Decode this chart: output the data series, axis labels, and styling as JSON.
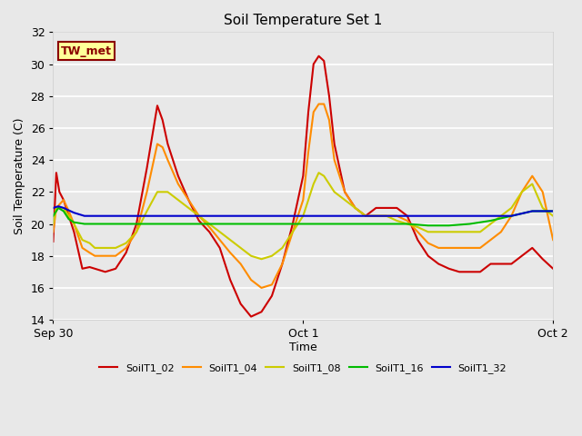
{
  "title": "Soil Temperature Set 1",
  "ylabel": "Soil Temperature (C)",
  "xlabel": "Time",
  "ylim": [
    14,
    32
  ],
  "yticks": [
    14,
    16,
    18,
    20,
    22,
    24,
    26,
    28,
    30,
    32
  ],
  "annotation_text": "TW_met",
  "annotation_bg": "#FFFF99",
  "annotation_border": "#8B0000",
  "plot_bg_color": "#E8E8E8",
  "fig_bg_color": "#E8E8E8",
  "series": {
    "SoilT1_02": {
      "color": "#CC0000",
      "points": [
        [
          0.0,
          18.9
        ],
        [
          0.3,
          23.2
        ],
        [
          0.6,
          22.0
        ],
        [
          1.0,
          21.5
        ],
        [
          1.5,
          20.5
        ],
        [
          2.0,
          19.5
        ],
        [
          2.8,
          17.2
        ],
        [
          3.5,
          17.3
        ],
        [
          4.0,
          17.2
        ],
        [
          5.0,
          17.0
        ],
        [
          6.0,
          17.2
        ],
        [
          7.0,
          18.2
        ],
        [
          8.0,
          20.0
        ],
        [
          9.0,
          23.5
        ],
        [
          10.0,
          27.4
        ],
        [
          10.5,
          26.5
        ],
        [
          11.0,
          25.0
        ],
        [
          12.0,
          23.0
        ],
        [
          13.0,
          21.5
        ],
        [
          14.0,
          20.2
        ],
        [
          15.0,
          19.5
        ],
        [
          16.0,
          18.5
        ],
        [
          17.0,
          16.5
        ],
        [
          18.0,
          15.0
        ],
        [
          19.0,
          14.2
        ],
        [
          20.0,
          14.5
        ],
        [
          21.0,
          15.5
        ],
        [
          22.0,
          17.5
        ],
        [
          23.0,
          20.0
        ],
        [
          24.0,
          23.0
        ],
        [
          24.5,
          27.0
        ],
        [
          25.0,
          30.0
        ],
        [
          25.5,
          30.5
        ],
        [
          26.0,
          30.2
        ],
        [
          26.5,
          28.0
        ],
        [
          27.0,
          25.0
        ],
        [
          28.0,
          22.0
        ],
        [
          29.0,
          21.0
        ],
        [
          30.0,
          20.5
        ],
        [
          31.0,
          21.0
        ],
        [
          32.0,
          21.0
        ],
        [
          33.0,
          21.0
        ],
        [
          34.0,
          20.5
        ],
        [
          35.0,
          19.0
        ],
        [
          36.0,
          18.0
        ],
        [
          37.0,
          17.5
        ],
        [
          38.0,
          17.2
        ],
        [
          39.0,
          17.0
        ],
        [
          40.0,
          17.0
        ],
        [
          41.0,
          17.0
        ],
        [
          42.0,
          17.5
        ],
        [
          43.0,
          17.5
        ],
        [
          44.0,
          17.5
        ],
        [
          45.0,
          18.0
        ],
        [
          46.0,
          18.5
        ],
        [
          47.0,
          17.8
        ],
        [
          48.0,
          17.2
        ]
      ]
    },
    "SoilT1_04": {
      "color": "#FF8C00",
      "points": [
        [
          0.0,
          19.5
        ],
        [
          0.3,
          21.0
        ],
        [
          1.0,
          21.5
        ],
        [
          1.5,
          20.8
        ],
        [
          2.0,
          20.0
        ],
        [
          2.8,
          18.5
        ],
        [
          3.5,
          18.2
        ],
        [
          4.0,
          18.0
        ],
        [
          5.0,
          18.0
        ],
        [
          6.0,
          18.0
        ],
        [
          7.0,
          18.5
        ],
        [
          8.0,
          19.5
        ],
        [
          9.0,
          22.0
        ],
        [
          10.0,
          25.0
        ],
        [
          10.5,
          24.8
        ],
        [
          11.0,
          24.0
        ],
        [
          12.0,
          22.5
        ],
        [
          13.0,
          21.5
        ],
        [
          14.0,
          20.5
        ],
        [
          15.0,
          19.8
        ],
        [
          16.0,
          19.0
        ],
        [
          17.0,
          18.2
        ],
        [
          18.0,
          17.5
        ],
        [
          19.0,
          16.5
        ],
        [
          20.0,
          16.0
        ],
        [
          21.0,
          16.2
        ],
        [
          22.0,
          17.5
        ],
        [
          23.0,
          19.5
        ],
        [
          24.0,
          21.5
        ],
        [
          24.5,
          24.5
        ],
        [
          25.0,
          27.0
        ],
        [
          25.5,
          27.5
        ],
        [
          26.0,
          27.5
        ],
        [
          26.5,
          26.5
        ],
        [
          27.0,
          24.0
        ],
        [
          28.0,
          22.0
        ],
        [
          29.0,
          21.0
        ],
        [
          30.0,
          20.5
        ],
        [
          31.0,
          20.5
        ],
        [
          32.0,
          20.5
        ],
        [
          33.0,
          20.5
        ],
        [
          34.0,
          20.2
        ],
        [
          35.0,
          19.5
        ],
        [
          36.0,
          18.8
        ],
        [
          37.0,
          18.5
        ],
        [
          38.0,
          18.5
        ],
        [
          39.0,
          18.5
        ],
        [
          40.0,
          18.5
        ],
        [
          41.0,
          18.5
        ],
        [
          42.0,
          19.0
        ],
        [
          43.0,
          19.5
        ],
        [
          44.0,
          20.5
        ],
        [
          45.0,
          22.0
        ],
        [
          46.0,
          23.0
        ],
        [
          47.0,
          22.0
        ],
        [
          48.0,
          19.0
        ]
      ]
    },
    "SoilT1_08": {
      "color": "#CCCC00",
      "points": [
        [
          0.0,
          20.0
        ],
        [
          0.3,
          21.0
        ],
        [
          1.0,
          21.0
        ],
        [
          1.5,
          20.5
        ],
        [
          2.0,
          20.0
        ],
        [
          2.8,
          19.0
        ],
        [
          3.5,
          18.8
        ],
        [
          4.0,
          18.5
        ],
        [
          5.0,
          18.5
        ],
        [
          6.0,
          18.5
        ],
        [
          7.0,
          18.8
        ],
        [
          8.0,
          19.5
        ],
        [
          9.0,
          20.8
        ],
        [
          10.0,
          22.0
        ],
        [
          10.5,
          22.0
        ],
        [
          11.0,
          22.0
        ],
        [
          12.0,
          21.5
        ],
        [
          13.0,
          21.0
        ],
        [
          14.0,
          20.5
        ],
        [
          15.0,
          20.0
        ],
        [
          16.0,
          19.5
        ],
        [
          17.0,
          19.0
        ],
        [
          18.0,
          18.5
        ],
        [
          19.0,
          18.0
        ],
        [
          20.0,
          17.8
        ],
        [
          21.0,
          18.0
        ],
        [
          22.0,
          18.5
        ],
        [
          23.0,
          19.5
        ],
        [
          24.0,
          20.5
        ],
        [
          24.5,
          21.5
        ],
        [
          25.0,
          22.5
        ],
        [
          25.5,
          23.2
        ],
        [
          26.0,
          23.0
        ],
        [
          26.5,
          22.5
        ],
        [
          27.0,
          22.0
        ],
        [
          28.0,
          21.5
        ],
        [
          29.0,
          21.0
        ],
        [
          30.0,
          20.5
        ],
        [
          31.0,
          20.5
        ],
        [
          32.0,
          20.5
        ],
        [
          33.0,
          20.2
        ],
        [
          34.0,
          20.0
        ],
        [
          35.0,
          19.8
        ],
        [
          36.0,
          19.5
        ],
        [
          37.0,
          19.5
        ],
        [
          38.0,
          19.5
        ],
        [
          39.0,
          19.5
        ],
        [
          40.0,
          19.5
        ],
        [
          41.0,
          19.5
        ],
        [
          42.0,
          20.0
        ],
        [
          43.0,
          20.5
        ],
        [
          44.0,
          21.0
        ],
        [
          45.0,
          22.0
        ],
        [
          46.0,
          22.5
        ],
        [
          47.0,
          21.0
        ],
        [
          48.0,
          20.5
        ]
      ]
    },
    "SoilT1_16": {
      "color": "#00BB00",
      "points": [
        [
          0.0,
          20.5
        ],
        [
          0.5,
          21.0
        ],
        [
          1.0,
          20.8
        ],
        [
          1.5,
          20.3
        ],
        [
          2.0,
          20.1
        ],
        [
          3.0,
          20.0
        ],
        [
          4.0,
          20.0
        ],
        [
          6.0,
          20.0
        ],
        [
          8.0,
          20.0
        ],
        [
          10.0,
          20.0
        ],
        [
          12.0,
          20.0
        ],
        [
          14.0,
          20.0
        ],
        [
          16.0,
          20.0
        ],
        [
          18.0,
          20.0
        ],
        [
          20.0,
          20.0
        ],
        [
          22.0,
          20.0
        ],
        [
          24.0,
          20.0
        ],
        [
          26.0,
          20.0
        ],
        [
          28.0,
          20.0
        ],
        [
          30.0,
          20.0
        ],
        [
          32.0,
          20.0
        ],
        [
          34.0,
          20.0
        ],
        [
          36.0,
          19.9
        ],
        [
          38.0,
          19.9
        ],
        [
          40.0,
          20.0
        ],
        [
          42.0,
          20.2
        ],
        [
          44.0,
          20.5
        ],
        [
          46.0,
          20.8
        ],
        [
          48.0,
          20.8
        ]
      ]
    },
    "SoilT1_32": {
      "color": "#0000CC",
      "points": [
        [
          0.0,
          21.0
        ],
        [
          0.5,
          21.1
        ],
        [
          1.0,
          21.0
        ],
        [
          2.0,
          20.7
        ],
        [
          3.0,
          20.5
        ],
        [
          4.0,
          20.5
        ],
        [
          6.0,
          20.5
        ],
        [
          8.0,
          20.5
        ],
        [
          10.0,
          20.5
        ],
        [
          12.0,
          20.5
        ],
        [
          14.0,
          20.5
        ],
        [
          16.0,
          20.5
        ],
        [
          18.0,
          20.5
        ],
        [
          20.0,
          20.5
        ],
        [
          22.0,
          20.5
        ],
        [
          24.0,
          20.5
        ],
        [
          26.0,
          20.5
        ],
        [
          28.0,
          20.5
        ],
        [
          30.0,
          20.5
        ],
        [
          32.0,
          20.5
        ],
        [
          34.0,
          20.5
        ],
        [
          36.0,
          20.5
        ],
        [
          38.0,
          20.5
        ],
        [
          40.0,
          20.5
        ],
        [
          42.0,
          20.5
        ],
        [
          44.0,
          20.5
        ],
        [
          46.0,
          20.8
        ],
        [
          48.0,
          20.8
        ]
      ]
    }
  },
  "xtick_positions": [
    0,
    24,
    48
  ],
  "xtick_labels": [
    "Sep 30",
    "Oct 1",
    "Oct 2"
  ],
  "legend_entries": [
    "SoilT1_02",
    "SoilT1_04",
    "SoilT1_08",
    "SoilT1_16",
    "SoilT1_32"
  ],
  "legend_colors": [
    "#CC0000",
    "#FF8C00",
    "#CCCC00",
    "#00BB00",
    "#0000CC"
  ]
}
